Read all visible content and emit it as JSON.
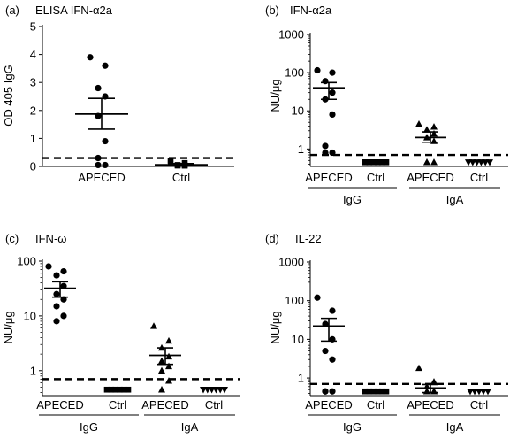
{
  "chart_data": [
    {
      "id": "a",
      "type": "scatter",
      "panel_letter": "(a)",
      "title": "ELISA IFN-α2a",
      "ylabel": "OD 405 IgG",
      "yscale": "linear",
      "ylim": [
        0,
        5
      ],
      "yticks": [
        0,
        1,
        2,
        3,
        4,
        5
      ],
      "ytick_labels": [
        "0",
        "1",
        "2",
        "3",
        "4",
        "5"
      ],
      "threshold": 0.3,
      "groups": [
        {
          "label": "APECED",
          "marker": "circle",
          "values": [
            3.9,
            3.6,
            2.8,
            2.5,
            1.8,
            0.9,
            0.3,
            0.05,
            0.05
          ],
          "mean": 1.87,
          "sem_low": 1.33,
          "sem_high": 2.43
        },
        {
          "label": "Ctrl",
          "marker": "square",
          "values": [
            0.2,
            0.12,
            0.05,
            0.03,
            0.03,
            0.03
          ],
          "mean": 0.06,
          "sem_low": 0.03,
          "sem_high": 0.1
        }
      ],
      "group_labels": [],
      "brackets": []
    },
    {
      "id": "b",
      "type": "scatter",
      "panel_letter": "(b)",
      "title": "IFN-α2a",
      "ylabel": "NU/μg",
      "yscale": "log",
      "ylim": [
        0.35,
        1000
      ],
      "yticks": [
        1,
        10,
        100,
        1000
      ],
      "ytick_labels": [
        "1",
        "10",
        "100",
        "1000"
      ],
      "threshold": 0.7,
      "groups": [
        {
          "label": "APECED",
          "marker": "circle",
          "values": [
            115,
            100,
            60,
            30,
            20,
            8,
            1.2,
            0.8,
            0.8
          ],
          "mean": 40,
          "sem_low": 20,
          "sem_high": 55
        },
        {
          "label": "Ctrl",
          "marker": "square",
          "values": [
            0.45,
            0.45,
            0.45,
            0.45,
            0.45,
            0.45
          ],
          "mean": null,
          "sem_low": null,
          "sem_high": null
        },
        {
          "label": "APECED",
          "marker": "triangle",
          "values": [
            4.5,
            3.8,
            3.2,
            2.5,
            2,
            1.6,
            0.45,
            0.45,
            0.45
          ],
          "mean": 2,
          "sem_low": 1.5,
          "sem_high": 2.8
        },
        {
          "label": "Ctrl",
          "marker": "triangle-down",
          "values": [
            0.45,
            0.45,
            0.45,
            0.45,
            0.45,
            0.45
          ],
          "mean": null,
          "sem_low": null,
          "sem_high": null
        }
      ],
      "group_labels": [
        "IgG",
        "IgA"
      ],
      "brackets": [
        [
          0,
          1
        ],
        [
          2,
          3
        ]
      ]
    },
    {
      "id": "c",
      "type": "scatter",
      "panel_letter": "(c)",
      "title": "IFN-ω",
      "ylabel": "NU/μg",
      "yscale": "log",
      "ylim": [
        0.35,
        100
      ],
      "yticks": [
        1,
        10,
        100
      ],
      "ytick_labels": [
        "1",
        "10",
        "100"
      ],
      "threshold": 0.7,
      "groups": [
        {
          "label": "APECED",
          "marker": "circle",
          "values": [
            80,
            65,
            55,
            35,
            25,
            20,
            15,
            10,
            8
          ],
          "mean": 32,
          "sem_low": 22,
          "sem_high": 42
        },
        {
          "label": "Ctrl",
          "marker": "square",
          "values": [
            0.45,
            0.45,
            0.45,
            0.45,
            0.45,
            0.45
          ],
          "mean": null,
          "sem_low": null,
          "sem_high": null
        },
        {
          "label": "APECED",
          "marker": "triangle",
          "values": [
            6.5,
            3.5,
            2.6,
            1.8,
            1.5,
            1.2,
            1,
            0.65,
            0.45
          ],
          "mean": 1.9,
          "sem_low": 1.3,
          "sem_high": 2.6
        },
        {
          "label": "Ctrl",
          "marker": "triangle-down",
          "values": [
            0.45,
            0.45,
            0.45,
            0.45,
            0.45,
            0.45
          ],
          "mean": null,
          "sem_low": null,
          "sem_high": null
        }
      ],
      "group_labels": [
        "IgG",
        "IgA"
      ],
      "brackets": [
        [
          0,
          1
        ],
        [
          2,
          3
        ]
      ]
    },
    {
      "id": "d",
      "type": "scatter",
      "panel_letter": "(d)",
      "title": "IL-22",
      "ylabel": "NU/μg",
      "yscale": "log",
      "ylim": [
        0.35,
        1000
      ],
      "yticks": [
        1,
        10,
        100,
        1000
      ],
      "ytick_labels": [
        "1",
        "10",
        "100",
        "1000"
      ],
      "threshold": 0.7,
      "groups": [
        {
          "label": "APECED",
          "marker": "circle",
          "values": [
            120,
            55,
            25,
            10,
            5,
            3,
            0.45,
            0.45,
            0.45
          ],
          "mean": 22,
          "sem_low": 9,
          "sem_high": 35
        },
        {
          "label": "Ctrl",
          "marker": "square",
          "values": [
            0.45,
            0.45,
            0.45,
            0.45,
            0.45,
            0.45
          ],
          "mean": null,
          "sem_low": null,
          "sem_high": null
        },
        {
          "label": "APECED",
          "marker": "triangle",
          "values": [
            1.8,
            0.8,
            0.6,
            0.45,
            0.45,
            0.45,
            0.45
          ],
          "mean": 0.55,
          "sem_low": 0.42,
          "sem_high": 0.68
        },
        {
          "label": "Ctrl",
          "marker": "triangle-down",
          "values": [
            0.45,
            0.45,
            0.45,
            0.45,
            0.45
          ],
          "mean": null,
          "sem_low": null,
          "sem_high": null
        }
      ],
      "group_labels": [
        "IgG",
        "IgA"
      ],
      "brackets": [
        [
          0,
          1
        ],
        [
          2,
          3
        ]
      ]
    }
  ]
}
